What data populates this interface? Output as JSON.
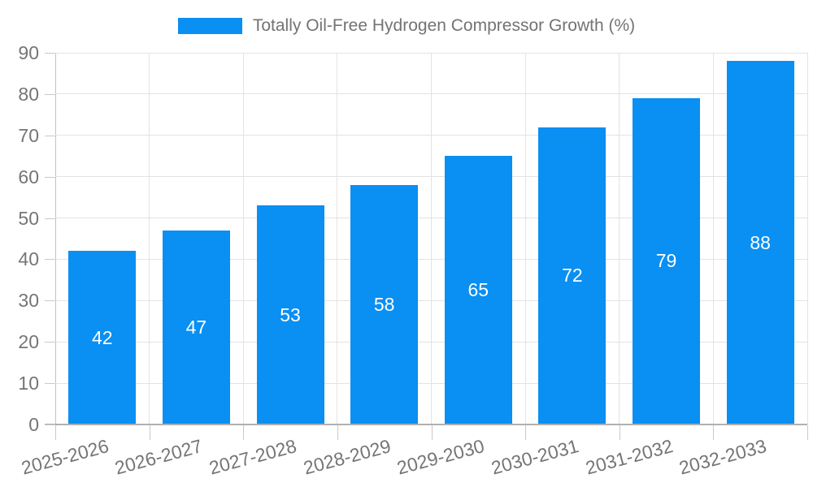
{
  "legend": {
    "label": "Totally Oil-Free Hydrogen Compressor Growth (%)"
  },
  "chart_data": {
    "type": "bar",
    "title": "Totally Oil-Free Hydrogen Compressor Growth (%)",
    "categories": [
      "2025-2026",
      "2026-2027",
      "2027-2028",
      "2028-2029",
      "2029-2030",
      "2030-2031",
      "2031-2032",
      "2032-2033"
    ],
    "values": [
      42,
      47,
      53,
      58,
      65,
      72,
      79,
      88
    ],
    "xlabel": "",
    "ylabel": "",
    "ylim": [
      0,
      90
    ],
    "ytick_step": 10,
    "yticks": [
      0,
      10,
      20,
      30,
      40,
      50,
      60,
      70,
      80,
      90
    ],
    "grid": true,
    "legend_position": "top-center",
    "value_labels": "inside-center",
    "colors": {
      "bar": "#0a8ff2",
      "value_label": "#ffffff",
      "text": "#757575",
      "title_text": "#737373",
      "gridline": "#e3e3e3",
      "axis": "#b0b0b0",
      "tick": "#c9c9c9"
    }
  }
}
